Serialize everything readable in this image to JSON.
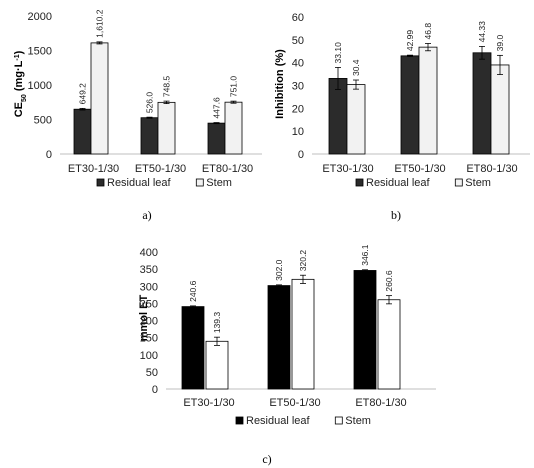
{
  "chart_data": [
    {
      "type": "bar",
      "panel": "a)",
      "categories": [
        "ET30-1/30",
        "ET50-1/30",
        "ET80-1/30"
      ],
      "ylabel": "CE50 (mg·L-1)",
      "ylim": [
        0,
        2000
      ],
      "yticks": [
        0,
        500,
        1000,
        1500,
        2000
      ],
      "legend_position": "bottom",
      "series": [
        {
          "name": "Residual leaf",
          "color": "#2b2b2b",
          "values": [
            649.2,
            526.0,
            447.6
          ],
          "errors": [
            12,
            8,
            8
          ],
          "labels": [
            "649.2",
            "526.0",
            "447.6"
          ]
        },
        {
          "name": "Stem",
          "color": "#f2f2f2",
          "values": [
            1610.2,
            748.5,
            751.0
          ],
          "errors": [
            15,
            18,
            15
          ],
          "labels": [
            "1,610.2",
            "748.5",
            "751.0"
          ]
        }
      ]
    },
    {
      "type": "bar",
      "panel": "b)",
      "categories": [
        "ET30-1/30",
        "ET50-1/30",
        "ET80-1/30"
      ],
      "ylabel": "Inhibition (%)",
      "ylim": [
        0,
        60
      ],
      "yticks": [
        0,
        10,
        20,
        30,
        40,
        50,
        60
      ],
      "legend_position": "bottom",
      "series": [
        {
          "name": "Residual leaf",
          "color": "#2b2b2b",
          "values": [
            33.1,
            42.99,
            44.33
          ],
          "errors": [
            4.8,
            0.3,
            2.8
          ],
          "labels": [
            "33.10",
            "42.99",
            "44.33"
          ]
        },
        {
          "name": "Stem",
          "color": "#f2f2f2",
          "values": [
            30.4,
            46.8,
            39.0
          ],
          "errors": [
            2.0,
            1.6,
            4.2
          ],
          "labels": [
            "30.4",
            "46.8",
            "39.0"
          ]
        }
      ]
    },
    {
      "type": "bar",
      "panel": "c)",
      "categories": [
        "ET30-1/30",
        "ET50-1/30",
        "ET80-1/30"
      ],
      "ylabel": "mmol ET",
      "ylim": [
        0,
        400
      ],
      "yticks": [
        0,
        50,
        100,
        150,
        200,
        250,
        300,
        350,
        400
      ],
      "legend_position": "bottom",
      "series": [
        {
          "name": "Residual leaf",
          "color": "#000000",
          "values": [
            240.6,
            302.0,
            346.1
          ],
          "errors": [
            2,
            2,
            2
          ],
          "labels": [
            "240.6",
            "302.0",
            "346.1"
          ]
        },
        {
          "name": "Stem",
          "color": "#ffffff",
          "values": [
            139.3,
            320.2,
            260.6
          ],
          "errors": [
            12,
            12,
            12
          ],
          "labels": [
            "139.3",
            "320.2",
            "260.6"
          ]
        }
      ]
    }
  ]
}
